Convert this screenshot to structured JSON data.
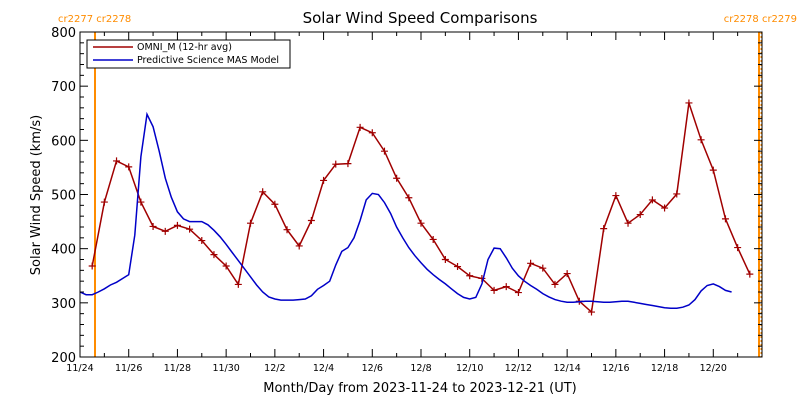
{
  "chart_data": {
    "type": "line",
    "title": "Solar Wind Speed Comparisons",
    "xlabel": "Month/Day from 2023-11-24 to 2023-12-21 (UT)",
    "ylabel": "Solar Wind Speed (km/s)",
    "xlim": [
      "2023-11-24",
      "2023-12-22"
    ],
    "ylim": [
      200,
      800
    ],
    "yticks": [
      200,
      300,
      400,
      500,
      600,
      700,
      800
    ],
    "xtick_labels": [
      "11/24",
      "11/26",
      "11/28",
      "11/30",
      "12/2",
      "12/4",
      "12/6",
      "12/8",
      "12/10",
      "12/12",
      "12/14",
      "12/16",
      "12/18",
      "12/20"
    ],
    "legend_position": "top-left",
    "carrington_labels": {
      "left": "cr2277 cr2278",
      "right": "cr2278 cr2279",
      "color": "#ff8c00"
    },
    "series": [
      {
        "name": "OMNI_M (12-hr avg)",
        "color": "#a00000",
        "marker": "plus",
        "points": [
          [
            "2023-11-24T12:00",
            368
          ],
          [
            "2023-11-25T00:00",
            486
          ],
          [
            "2023-11-25T12:00",
            562
          ],
          [
            "2023-11-26T00:00",
            551
          ],
          [
            "2023-11-26T12:00",
            486
          ],
          [
            "2023-11-27T00:00",
            441
          ],
          [
            "2023-11-27T12:00",
            432
          ],
          [
            "2023-11-28T00:00",
            443
          ],
          [
            "2023-11-28T12:00",
            436
          ],
          [
            "2023-11-29T00:00",
            415
          ],
          [
            "2023-11-29T12:00",
            389
          ],
          [
            "2023-11-30T00:00",
            368
          ],
          [
            "2023-11-30T12:00",
            334
          ],
          [
            "2023-12-01T00:00",
            447
          ],
          [
            "2023-12-01T12:00",
            505
          ],
          [
            "2023-12-02T00:00",
            482
          ],
          [
            "2023-12-02T12:00",
            435
          ],
          [
            "2023-12-03T00:00",
            405
          ],
          [
            "2023-12-03T12:00",
            452
          ],
          [
            "2023-12-04T00:00",
            526
          ],
          [
            "2023-12-04T12:00",
            556
          ],
          [
            "2023-12-05T00:00",
            557
          ],
          [
            "2023-12-05T12:00",
            624
          ],
          [
            "2023-12-06T00:00",
            614
          ],
          [
            "2023-12-06T12:00",
            580
          ],
          [
            "2023-12-07T00:00",
            530
          ],
          [
            "2023-12-07T12:00",
            494
          ],
          [
            "2023-12-08T00:00",
            447
          ],
          [
            "2023-12-08T12:00",
            417
          ],
          [
            "2023-12-09T00:00",
            380
          ],
          [
            "2023-12-09T12:00",
            367
          ],
          [
            "2023-12-10T00:00",
            350
          ],
          [
            "2023-12-10T12:00",
            345
          ],
          [
            "2023-12-11T00:00",
            323
          ],
          [
            "2023-12-11T12:00",
            330
          ],
          [
            "2023-12-12T00:00",
            319
          ],
          [
            "2023-12-12T12:00",
            373
          ],
          [
            "2023-12-13T00:00",
            364
          ],
          [
            "2023-12-13T12:00",
            334
          ],
          [
            "2023-12-14T00:00",
            354
          ],
          [
            "2023-12-14T12:00",
            303
          ],
          [
            "2023-12-15T00:00",
            283
          ],
          [
            "2023-12-15T12:00",
            437
          ],
          [
            "2023-12-16T00:00",
            498
          ],
          [
            "2023-12-16T12:00",
            447
          ],
          [
            "2023-12-17T00:00",
            463
          ],
          [
            "2023-12-17T12:00",
            490
          ],
          [
            "2023-12-18T00:00",
            475
          ],
          [
            "2023-12-18T12:00",
            501
          ],
          [
            "2023-12-19T00:00",
            669
          ],
          [
            "2023-12-19T12:00",
            601
          ],
          [
            "2023-12-20T00:00",
            545
          ],
          [
            "2023-12-20T12:00",
            455
          ],
          [
            "2023-12-21T00:00",
            402
          ],
          [
            "2023-12-21T12:00",
            353
          ]
        ]
      },
      {
        "name": "Predictive Science MAS Model",
        "color": "#0000c8",
        "marker": "none",
        "points": [
          [
            "2023-11-24T00:00",
            320
          ],
          [
            "2023-11-24T06:00",
            315
          ],
          [
            "2023-11-24T12:00",
            315
          ],
          [
            "2023-11-24T18:00",
            320
          ],
          [
            "2023-11-25T00:00",
            326
          ],
          [
            "2023-11-25T06:00",
            333
          ],
          [
            "2023-11-25T12:00",
            338
          ],
          [
            "2023-11-25T18:00",
            345
          ],
          [
            "2023-11-26T00:00",
            352
          ],
          [
            "2023-11-26T06:00",
            425
          ],
          [
            "2023-11-26T12:00",
            570
          ],
          [
            "2023-11-26T18:00",
            648
          ],
          [
            "2023-11-27T00:00",
            625
          ],
          [
            "2023-11-27T06:00",
            580
          ],
          [
            "2023-11-27T12:00",
            530
          ],
          [
            "2023-11-27T18:00",
            495
          ],
          [
            "2023-11-28T00:00",
            468
          ],
          [
            "2023-11-28T06:00",
            455
          ],
          [
            "2023-11-28T12:00",
            450
          ],
          [
            "2023-11-28T18:00",
            450
          ],
          [
            "2023-11-29T00:00",
            450
          ],
          [
            "2023-11-29T06:00",
            444
          ],
          [
            "2023-11-29T12:00",
            434
          ],
          [
            "2023-11-29T18:00",
            422
          ],
          [
            "2023-11-30T00:00",
            408
          ],
          [
            "2023-11-30T06:00",
            393
          ],
          [
            "2023-11-30T12:00",
            378
          ],
          [
            "2023-11-30T18:00",
            363
          ],
          [
            "2023-12-01T00:00",
            348
          ],
          [
            "2023-12-01T06:00",
            333
          ],
          [
            "2023-12-01T12:00",
            320
          ],
          [
            "2023-12-01T18:00",
            311
          ],
          [
            "2023-12-02T00:00",
            307
          ],
          [
            "2023-12-02T06:00",
            305
          ],
          [
            "2023-12-02T12:00",
            305
          ],
          [
            "2023-12-02T18:00",
            305
          ],
          [
            "2023-12-03T00:00",
            306
          ],
          [
            "2023-12-03T06:00",
            307
          ],
          [
            "2023-12-03T12:00",
            313
          ],
          [
            "2023-12-03T18:00",
            325
          ],
          [
            "2023-12-04T00:00",
            332
          ],
          [
            "2023-12-04T06:00",
            340
          ],
          [
            "2023-12-04T12:00",
            370
          ],
          [
            "2023-12-04T18:00",
            395
          ],
          [
            "2023-12-05T00:00",
            402
          ],
          [
            "2023-12-05T06:00",
            420
          ],
          [
            "2023-12-05T12:00",
            452
          ],
          [
            "2023-12-05T18:00",
            490
          ],
          [
            "2023-12-06T00:00",
            502
          ],
          [
            "2023-12-06T06:00",
            500
          ],
          [
            "2023-12-06T12:00",
            485
          ],
          [
            "2023-12-06T18:00",
            465
          ],
          [
            "2023-12-07T00:00",
            440
          ],
          [
            "2023-12-07T06:00",
            420
          ],
          [
            "2023-12-07T12:00",
            402
          ],
          [
            "2023-12-07T18:00",
            387
          ],
          [
            "2023-12-08T00:00",
            374
          ],
          [
            "2023-12-08T06:00",
            362
          ],
          [
            "2023-12-08T12:00",
            352
          ],
          [
            "2023-12-08T18:00",
            343
          ],
          [
            "2023-12-09T00:00",
            335
          ],
          [
            "2023-12-09T06:00",
            326
          ],
          [
            "2023-12-09T12:00",
            317
          ],
          [
            "2023-12-09T18:00",
            310
          ],
          [
            "2023-12-10T00:00",
            307
          ],
          [
            "2023-12-10T06:00",
            310
          ],
          [
            "2023-12-10T12:00",
            335
          ],
          [
            "2023-12-10T18:00",
            380
          ],
          [
            "2023-12-11T00:00",
            401
          ],
          [
            "2023-12-11T06:00",
            400
          ],
          [
            "2023-12-11T12:00",
            383
          ],
          [
            "2023-12-11T18:00",
            364
          ],
          [
            "2023-12-12T00:00",
            350
          ],
          [
            "2023-12-12T06:00",
            340
          ],
          [
            "2023-12-12T12:00",
            332
          ],
          [
            "2023-12-12T18:00",
            325
          ],
          [
            "2023-12-13T00:00",
            317
          ],
          [
            "2023-12-13T06:00",
            311
          ],
          [
            "2023-12-13T12:00",
            306
          ],
          [
            "2023-12-13T18:00",
            303
          ],
          [
            "2023-12-14T00:00",
            301
          ],
          [
            "2023-12-14T06:00",
            301
          ],
          [
            "2023-12-14T12:00",
            302
          ],
          [
            "2023-12-14T18:00",
            303
          ],
          [
            "2023-12-15T00:00",
            303
          ],
          [
            "2023-12-15T06:00",
            302
          ],
          [
            "2023-12-15T12:00",
            301
          ],
          [
            "2023-12-15T18:00",
            301
          ],
          [
            "2023-12-16T00:00",
            302
          ],
          [
            "2023-12-16T06:00",
            303
          ],
          [
            "2023-12-16T12:00",
            303
          ],
          [
            "2023-12-16T18:00",
            301
          ],
          [
            "2023-12-17T00:00",
            299
          ],
          [
            "2023-12-17T06:00",
            297
          ],
          [
            "2023-12-17T12:00",
            295
          ],
          [
            "2023-12-17T18:00",
            293
          ],
          [
            "2023-12-18T00:00",
            291
          ],
          [
            "2023-12-18T06:00",
            290
          ],
          [
            "2023-12-18T12:00",
            290
          ],
          [
            "2023-12-18T18:00",
            292
          ],
          [
            "2023-12-19T00:00",
            296
          ],
          [
            "2023-12-19T06:00",
            306
          ],
          [
            "2023-12-19T12:00",
            322
          ],
          [
            "2023-12-19T18:00",
            332
          ],
          [
            "2023-12-20T00:00",
            335
          ],
          [
            "2023-12-20T06:00",
            330
          ],
          [
            "2023-12-20T12:00",
            323
          ],
          [
            "2023-12-20T18:00",
            320
          ]
        ]
      }
    ],
    "frame_color": "#000000",
    "cr_line_color": "#ff8c00"
  }
}
